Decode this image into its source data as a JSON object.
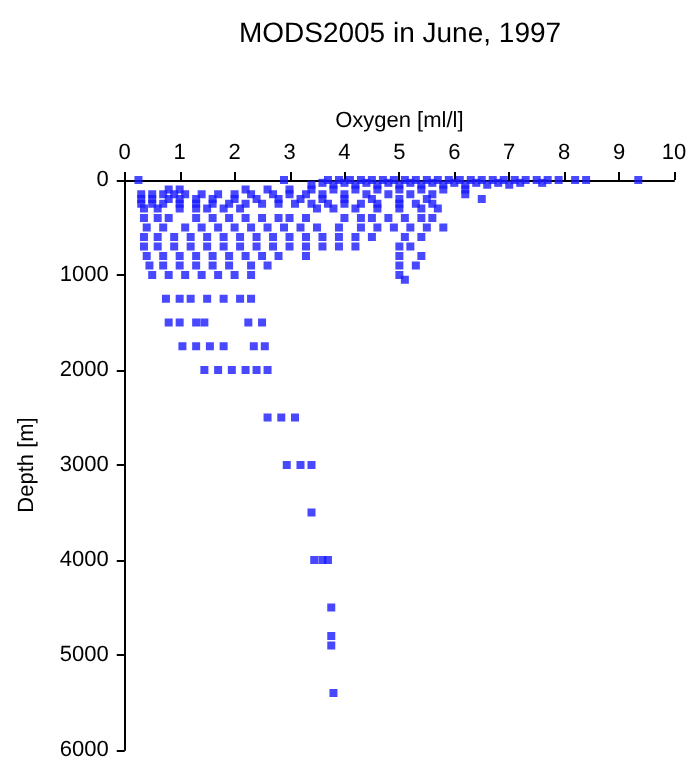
{
  "chart_data": {
    "type": "scatter",
    "title": "MODS2005 in June, 1997",
    "xlabel": "Oxygen [ml/l]",
    "ylabel": "Depth [m]",
    "xlim": [
      0,
      10
    ],
    "xticks": [
      0,
      1,
      2,
      3,
      4,
      5,
      6,
      7,
      8,
      9,
      10
    ],
    "ylim": [
      6000,
      0
    ],
    "yticks": [
      0,
      1000,
      2000,
      3000,
      4000,
      5000,
      6000
    ],
    "grid": false,
    "marker": "square",
    "series": [
      {
        "color": "#1a1aff",
        "x": [
          0.25,
          2.9,
          3.7,
          3.9,
          4.1,
          4.3,
          4.5,
          4.7,
          4.9,
          5.1,
          5.3,
          5.5,
          5.7,
          5.9,
          6.1,
          6.3,
          6.5,
          6.7,
          6.9,
          7.1,
          7.3,
          7.5,
          7.7,
          7.9,
          8.2,
          8.4,
          9.35,
          3.6,
          4.0,
          4.4,
          4.8,
          5.2,
          5.6,
          6.0,
          6.4,
          6.8,
          7.2,
          7.6,
          3.4,
          3.8,
          4.2,
          4.6,
          5.0,
          5.4,
          5.8,
          6.2,
          6.6,
          7.0,
          0.8,
          1.0,
          2.2,
          2.6,
          3.0,
          3.4,
          3.8,
          4.2,
          4.6,
          5.0,
          5.4,
          5.8,
          6.2,
          0.3,
          0.5,
          0.7,
          0.9,
          1.1,
          1.4,
          1.7,
          2.0,
          2.3,
          2.7,
          3.0,
          3.3,
          3.6,
          4.0,
          4.4,
          4.8,
          5.2,
          5.6,
          6.2,
          0.3,
          0.5,
          0.8,
          1.0,
          1.3,
          1.6,
          2.0,
          2.4,
          2.8,
          3.2,
          3.6,
          4.0,
          4.5,
          5.0,
          5.5,
          6.5,
          0.3,
          0.5,
          0.7,
          1.0,
          1.3,
          1.6,
          1.9,
          2.2,
          2.5,
          2.8,
          3.1,
          3.4,
          3.7,
          4.0,
          4.3,
          4.6,
          5.0,
          5.3,
          5.6,
          0.35,
          0.6,
          1.0,
          1.3,
          1.5,
          1.8,
          2.1,
          3.5,
          3.8,
          4.2,
          4.6,
          5.0,
          5.4,
          5.7,
          0.35,
          0.6,
          0.8,
          1.3,
          1.6,
          1.9,
          2.2,
          2.5,
          2.8,
          3.0,
          3.3,
          4.0,
          4.3,
          4.5,
          4.8,
          5.1,
          5.4,
          5.6,
          0.4,
          0.7,
          1.1,
          1.4,
          1.7,
          2.0,
          2.3,
          2.6,
          2.9,
          3.2,
          3.5,
          3.9,
          4.3,
          4.6,
          4.9,
          5.2,
          5.5,
          5.8,
          0.35,
          0.6,
          0.9,
          1.2,
          1.5,
          1.8,
          2.1,
          2.4,
          2.7,
          3.0,
          3.3,
          3.6,
          3.9,
          4.2,
          4.5,
          5.1,
          5.4,
          0.35,
          0.6,
          0.9,
          1.2,
          1.5,
          1.8,
          2.1,
          2.4,
          2.7,
          3.0,
          3.3,
          3.6,
          3.9,
          4.2,
          5.0,
          5.2,
          0.4,
          0.7,
          1.0,
          1.3,
          1.6,
          1.9,
          2.2,
          2.5,
          2.8,
          3.3,
          5.0,
          5.4,
          0.45,
          0.7,
          1.0,
          1.3,
          1.6,
          1.9,
          2.3,
          2.6,
          5.0,
          5.3,
          0.5,
          0.8,
          1.1,
          1.4,
          1.7,
          2.0,
          2.3,
          5.0,
          5.1,
          0.75,
          1.0,
          1.2,
          1.5,
          1.8,
          2.1,
          2.3,
          0.8,
          1.0,
          1.3,
          1.45,
          2.25,
          2.5,
          1.05,
          1.3,
          1.55,
          1.8,
          2.35,
          2.55,
          1.45,
          1.7,
          1.95,
          2.2,
          2.4,
          2.6,
          2.6,
          2.85,
          3.1,
          2.95,
          3.2,
          3.4,
          3.4,
          3.45,
          3.6,
          3.7,
          3.76,
          3.76,
          3.76,
          3.8
        ],
        "values": [
          0,
          0,
          0,
          0,
          0,
          0,
          0,
          0,
          0,
          0,
          0,
          0,
          0,
          0,
          0,
          0,
          0,
          0,
          0,
          0,
          0,
          0,
          0,
          0,
          0,
          0,
          0,
          30,
          30,
          30,
          30,
          30,
          30,
          30,
          30,
          30,
          30,
          30,
          50,
          50,
          50,
          50,
          50,
          50,
          50,
          50,
          50,
          50,
          100,
          100,
          100,
          100,
          100,
          100,
          100,
          100,
          100,
          100,
          100,
          100,
          100,
          150,
          150,
          150,
          150,
          150,
          150,
          150,
          150,
          150,
          150,
          150,
          150,
          150,
          150,
          150,
          150,
          150,
          150,
          150,
          200,
          200,
          200,
          200,
          200,
          200,
          200,
          200,
          200,
          200,
          200,
          200,
          200,
          200,
          200,
          200,
          250,
          250,
          250,
          250,
          250,
          250,
          250,
          250,
          250,
          250,
          250,
          250,
          250,
          250,
          250,
          250,
          250,
          250,
          250,
          300,
          300,
          300,
          300,
          300,
          300,
          300,
          300,
          300,
          300,
          300,
          300,
          300,
          300,
          400,
          400,
          400,
          400,
          400,
          400,
          400,
          400,
          400,
          400,
          400,
          400,
          400,
          400,
          400,
          400,
          400,
          400,
          500,
          500,
          500,
          500,
          500,
          500,
          500,
          500,
          500,
          500,
          500,
          500,
          500,
          500,
          500,
          500,
          500,
          500,
          600,
          600,
          600,
          600,
          600,
          600,
          600,
          600,
          600,
          600,
          600,
          600,
          600,
          600,
          600,
          600,
          600,
          700,
          700,
          700,
          700,
          700,
          700,
          700,
          700,
          700,
          700,
          700,
          700,
          700,
          700,
          700,
          700,
          800,
          800,
          800,
          800,
          800,
          800,
          800,
          800,
          800,
          800,
          800,
          800,
          900,
          900,
          900,
          900,
          900,
          900,
          900,
          900,
          900,
          900,
          1000,
          1000,
          1000,
          1000,
          1000,
          1000,
          1000,
          1000,
          1050,
          1250,
          1250,
          1250,
          1250,
          1250,
          1250,
          1250,
          1500,
          1500,
          1500,
          1500,
          1500,
          1500,
          1750,
          1750,
          1750,
          1750,
          1750,
          1750,
          2000,
          2000,
          2000,
          2000,
          2000,
          2000,
          2500,
          2500,
          2500,
          3000,
          3000,
          3000,
          3500,
          4000,
          4000,
          4000,
          4500,
          4800,
          4900,
          5400
        ]
      }
    ]
  }
}
